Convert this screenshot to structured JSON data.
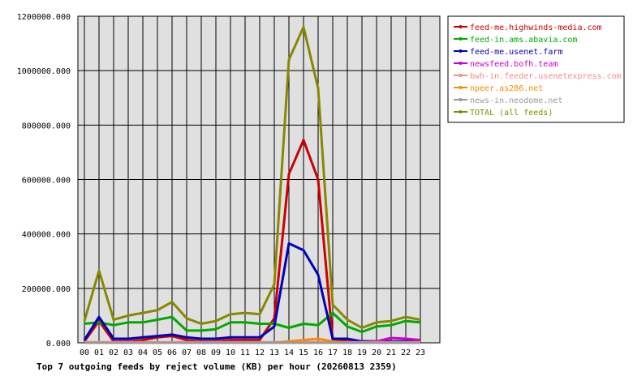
{
  "chart_data": {
    "type": "line",
    "title": "Top 7 outgoing feeds by reject volume (KB) per hour (20260813 2359)",
    "categories": [
      "00",
      "01",
      "02",
      "03",
      "04",
      "05",
      "06",
      "07",
      "08",
      "09",
      "10",
      "11",
      "12",
      "13",
      "14",
      "15",
      "16",
      "17",
      "18",
      "19",
      "20",
      "21",
      "22",
      "23"
    ],
    "ylim": [
      0,
      1200000
    ],
    "y_ticks": [
      {
        "value": 0,
        "label": "0.000"
      },
      {
        "value": 200000,
        "label": "200000.000"
      },
      {
        "value": 400000,
        "label": "400000.000"
      },
      {
        "value": 600000,
        "label": "600000.000"
      },
      {
        "value": 800000,
        "label": "800000.000"
      },
      {
        "value": 1000000,
        "label": "1000000.000"
      },
      {
        "value": 1200000,
        "label": "1200000.000"
      }
    ],
    "grid": true,
    "legend_position": "right",
    "series": [
      {
        "name": "feed-me.highwinds-media.com",
        "color": "#cc0000",
        "values": [
          5000,
          80000,
          5000,
          5000,
          10000,
          20000,
          25000,
          10000,
          5000,
          5000,
          10000,
          10000,
          10000,
          90000,
          620000,
          745000,
          600000,
          10000,
          5000,
          5000,
          5000,
          5000,
          5000,
          5000
        ]
      },
      {
        "name": "feed-in.ams.abavia.com",
        "color": "#00aa00",
        "values": [
          70000,
          75000,
          65000,
          75000,
          75000,
          85000,
          95000,
          45000,
          45000,
          50000,
          75000,
          75000,
          70000,
          70000,
          55000,
          70000,
          65000,
          110000,
          60000,
          40000,
          60000,
          65000,
          80000,
          75000
        ]
      },
      {
        "name": "feed-me.usenet.farm",
        "color": "#0000bb",
        "values": [
          10000,
          95000,
          15000,
          15000,
          20000,
          25000,
          30000,
          20000,
          15000,
          15000,
          20000,
          20000,
          20000,
          60000,
          365000,
          340000,
          250000,
          15000,
          15000,
          5000,
          5000,
          5000,
          5000,
          5000
        ]
      },
      {
        "name": "newsfeed.bofh.team",
        "color": "#cc00cc",
        "values": [
          0,
          0,
          0,
          0,
          0,
          0,
          0,
          0,
          0,
          0,
          0,
          0,
          0,
          0,
          0,
          0,
          0,
          0,
          0,
          0,
          5000,
          18000,
          15000,
          10000
        ]
      },
      {
        "name": "bwh-in.feeder.usenetexpress.com",
        "color": "#ff8888",
        "values": [
          2000,
          2000,
          2000,
          2000,
          2000,
          2000,
          2000,
          2000,
          2000,
          2000,
          2000,
          2000,
          2000,
          2000,
          2000,
          2000,
          2000,
          2000,
          2000,
          2000,
          2000,
          2000,
          2000,
          2000
        ]
      },
      {
        "name": "npeer.as286.net",
        "color": "#ff8800",
        "values": [
          0,
          0,
          0,
          0,
          0,
          0,
          0,
          0,
          0,
          0,
          0,
          0,
          0,
          0,
          5000,
          10000,
          15000,
          5000,
          0,
          0,
          0,
          0,
          0,
          0
        ]
      },
      {
        "name": "news-in.neodome.net",
        "color": "#999999",
        "values": [
          0,
          0,
          0,
          0,
          0,
          0,
          0,
          0,
          0,
          0,
          0,
          0,
          0,
          0,
          0,
          0,
          0,
          0,
          0,
          0,
          0,
          0,
          0,
          0
        ]
      },
      {
        "name": "TOTAL (all feeds)",
        "color": "#888800",
        "values": [
          80000,
          265000,
          85000,
          100000,
          110000,
          120000,
          150000,
          90000,
          70000,
          80000,
          105000,
          110000,
          105000,
          215000,
          1040000,
          1160000,
          935000,
          140000,
          85000,
          55000,
          75000,
          80000,
          95000,
          85000
        ]
      }
    ]
  }
}
